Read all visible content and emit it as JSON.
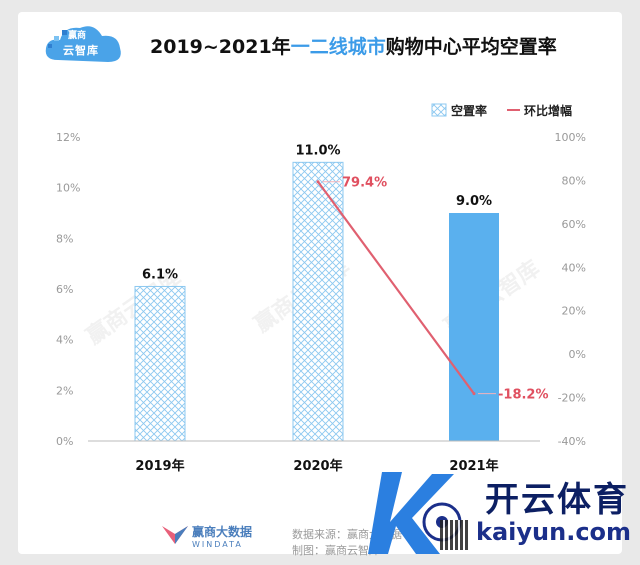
{
  "title_prefix": "2019~2021年",
  "title_highlight": "一二线城市",
  "title_suffix": "购物中心平均空置率",
  "logo_text": "云智库",
  "logo_mark_text": "赢商",
  "watermark_text": "赢商云智库",
  "footer": {
    "brand": "赢商大数据",
    "brand_sub": "WINDATA",
    "source": "数据来源：赢商大数据",
    "maker": "制图：赢商云智库"
  },
  "kaiyun": {
    "cn": "开云体育",
    "en": "kaiyun.com"
  },
  "colors": {
    "bar_hatched": "#7ec3f3",
    "bar_solid": "#5ab0ee",
    "line": "#e06070",
    "pct_label": "#e05060",
    "axis_text": "#999999"
  },
  "chart_data": {
    "type": "bar",
    "categories": [
      "2019年",
      "2020年",
      "2021年"
    ],
    "series": [
      {
        "name": "空置率",
        "values": [
          6.1,
          11.0,
          9.0
        ],
        "labels": [
          "6.1%",
          "11.0%",
          "9.0%"
        ],
        "style": [
          "hatched",
          "hatched",
          "solid"
        ]
      },
      {
        "name": "环比增幅",
        "type": "line",
        "values": [
          null,
          79.4,
          -18.2
        ],
        "labels": [
          "",
          "79.4%",
          "-18.2%"
        ]
      }
    ],
    "y_left": {
      "min": 0,
      "max": 12,
      "ticks": [
        "0%",
        "2%",
        "4%",
        "6%",
        "8%",
        "10%",
        "12%"
      ],
      "tick_values": [
        0,
        2,
        4,
        6,
        8,
        10,
        12
      ]
    },
    "y_right": {
      "min": -40,
      "max": 100,
      "ticks": [
        "-40%",
        "-20%",
        "0%",
        "20%",
        "40%",
        "60%",
        "80%",
        "100%"
      ],
      "tick_values": [
        -40,
        -20,
        0,
        20,
        40,
        60,
        80,
        100
      ]
    },
    "legend": [
      "空置率",
      "环比增幅"
    ],
    "legend_position": "top-right",
    "grid": false
  }
}
